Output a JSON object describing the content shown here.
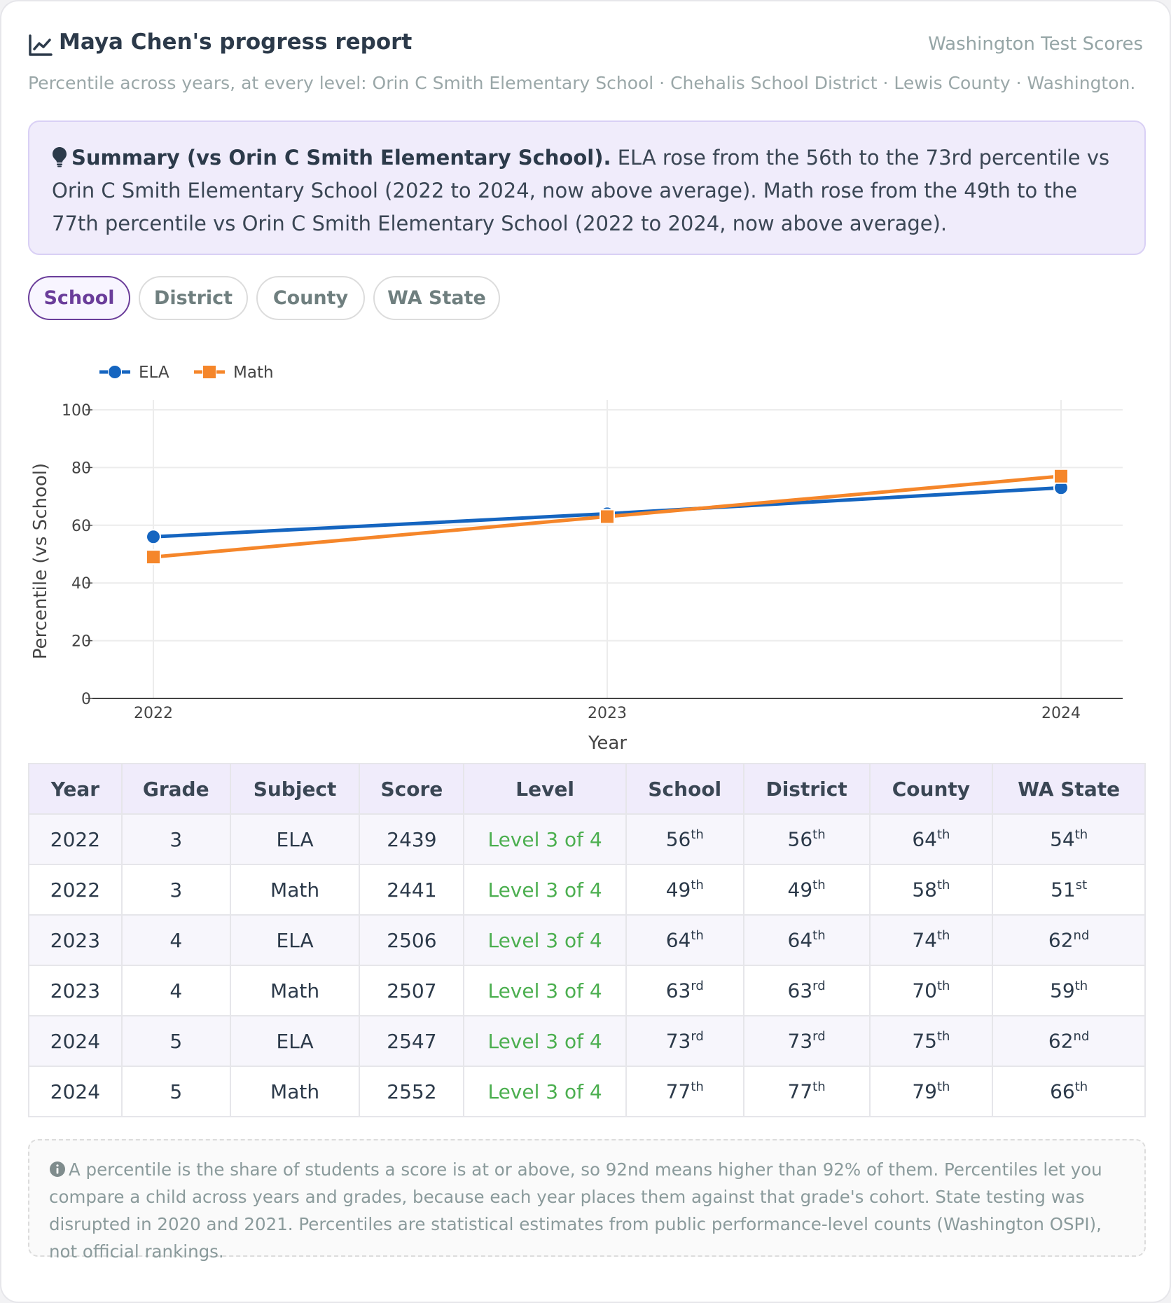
{
  "header": {
    "title": "Maya Chen's progress report",
    "brand": "Washington Test Scores",
    "subtitle": "Percentile across years, at every level: Orin C Smith Elementary School · Chehalis School District · Lewis County · Washington."
  },
  "summary": {
    "lead": "Summary (vs Orin C Smith Elementary School).",
    "text": "ELA rose from the 56th to the 73rd percentile vs Orin C Smith Elementary School (2022 to 2024, now above average). Math rose from the 49th to the 77th percentile vs Orin C Smith Elementary School (2022 to 2024, now above average)."
  },
  "tabs": [
    {
      "label": "School",
      "active": true
    },
    {
      "label": "District",
      "active": false
    },
    {
      "label": "County",
      "active": false
    },
    {
      "label": "WA State",
      "active": false
    }
  ],
  "colors": {
    "ela": "#1565c0",
    "math": "#f5862a",
    "accent": "#6a3d9a",
    "level": "#4caf50"
  },
  "chart_data": {
    "type": "line",
    "x": [
      2022,
      2023,
      2024
    ],
    "xlabel": "Year",
    "ylabel": "Percentile (vs School)",
    "ylim": [
      0,
      100
    ],
    "yticks": [
      0,
      20,
      40,
      60,
      80,
      100
    ],
    "xticks": [
      "2022",
      "2023",
      "2024"
    ],
    "grid": true,
    "legend": "top-left",
    "series": [
      {
        "name": "ELA",
        "values": [
          56,
          64,
          73
        ],
        "marker": "circle",
        "color": "#1565c0"
      },
      {
        "name": "Math",
        "values": [
          49,
          63,
          77
        ],
        "marker": "square",
        "color": "#f5862a"
      }
    ]
  },
  "table": {
    "headers": [
      "Year",
      "Grade",
      "Subject",
      "Score",
      "Level",
      "School",
      "District",
      "County",
      "WA State"
    ],
    "rows": [
      {
        "year": "2022",
        "grade": "3",
        "subject": "ELA",
        "score": "2439",
        "level": "Level 3 of 4",
        "pct": [
          [
            "56",
            "th"
          ],
          [
            "56",
            "th"
          ],
          [
            "64",
            "th"
          ],
          [
            "54",
            "th"
          ]
        ]
      },
      {
        "year": "2022",
        "grade": "3",
        "subject": "Math",
        "score": "2441",
        "level": "Level 3 of 4",
        "pct": [
          [
            "49",
            "th"
          ],
          [
            "49",
            "th"
          ],
          [
            "58",
            "th"
          ],
          [
            "51",
            "st"
          ]
        ]
      },
      {
        "year": "2023",
        "grade": "4",
        "subject": "ELA",
        "score": "2506",
        "level": "Level 3 of 4",
        "pct": [
          [
            "64",
            "th"
          ],
          [
            "64",
            "th"
          ],
          [
            "74",
            "th"
          ],
          [
            "62",
            "nd"
          ]
        ]
      },
      {
        "year": "2023",
        "grade": "4",
        "subject": "Math",
        "score": "2507",
        "level": "Level 3 of 4",
        "pct": [
          [
            "63",
            "rd"
          ],
          [
            "63",
            "rd"
          ],
          [
            "70",
            "th"
          ],
          [
            "59",
            "th"
          ]
        ]
      },
      {
        "year": "2024",
        "grade": "5",
        "subject": "ELA",
        "score": "2547",
        "level": "Level 3 of 4",
        "pct": [
          [
            "73",
            "rd"
          ],
          [
            "73",
            "rd"
          ],
          [
            "75",
            "th"
          ],
          [
            "62",
            "nd"
          ]
        ]
      },
      {
        "year": "2024",
        "grade": "5",
        "subject": "Math",
        "score": "2552",
        "level": "Level 3 of 4",
        "pct": [
          [
            "77",
            "th"
          ],
          [
            "77",
            "th"
          ],
          [
            "79",
            "th"
          ],
          [
            "66",
            "th"
          ]
        ]
      }
    ]
  },
  "note": "A percentile is the share of students a score is at or above, so 92nd means higher than 92% of them. Percentiles let you compare a child across years and grades, because each year places them against that grade's cohort. State testing was disrupted in 2020 and 2021. Percentiles are statistical estimates from public performance-level counts (Washington OSPI), not official rankings."
}
